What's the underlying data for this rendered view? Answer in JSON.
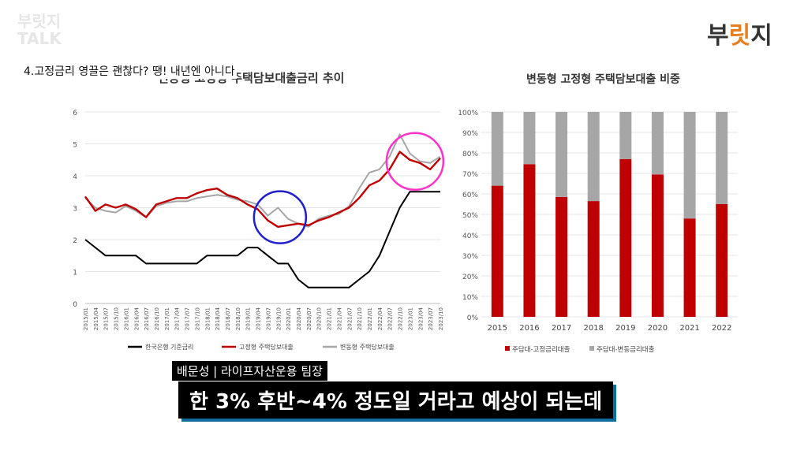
{
  "logo_left": {
    "line1": "부릿지",
    "line2": "TALK"
  },
  "logo_right": {
    "part1": "부",
    "part2": "릿",
    "part3": "지"
  },
  "slide_title": "4.고정금리 영끌은 괜찮다? 땡! 내년엔 아니다",
  "left_chart_title": "변동형 고정형 주택담보대출금리 추이",
  "right_chart_title": "변동형 고정형 주택담보대출 비중",
  "speaker_label": "배문성 | 라이프자산운용 팀장",
  "caption": "한 3% 후반~4% 정도일 거라고 예상이 되는데",
  "colors": {
    "red": "#c00000",
    "gray": "#a6a6a6",
    "black": "#000000",
    "blue_circle": "#1f1fcc",
    "magenta_circle": "#ff33cc"
  },
  "chart_data": [
    {
      "type": "line",
      "ylim": [
        0,
        6
      ],
      "yticks": [
        "0",
        "1",
        "2",
        "3",
        "4",
        "5",
        "6"
      ],
      "x_tick_labels": [
        "2015/01",
        "2015/04",
        "2015/07",
        "2015/10",
        "2016/01",
        "2016/04",
        "2016/07",
        "2016/10",
        "2017/01",
        "2017/04",
        "2017/07",
        "2017/10",
        "2018/01",
        "2018/04",
        "2018/07",
        "2018/10",
        "2019/01",
        "2019/04",
        "2019/07",
        "2019/10",
        "2020/01",
        "2020/04",
        "2020/07",
        "2020/10",
        "2021/01",
        "2021/04",
        "2021/07",
        "2021/10",
        "2022/01",
        "2022/04",
        "2022/07",
        "2022/10",
        "2023/01",
        "2023/04",
        "2023/07",
        "2023/10"
      ],
      "series": [
        {
          "name": "한국은행 기준금리",
          "color": "#000000",
          "values": [
            2.0,
            1.75,
            1.5,
            1.5,
            1.5,
            1.5,
            1.25,
            1.25,
            1.25,
            1.25,
            1.25,
            1.25,
            1.5,
            1.5,
            1.5,
            1.5,
            1.75,
            1.75,
            1.5,
            1.25,
            1.25,
            0.75,
            0.5,
            0.5,
            0.5,
            0.5,
            0.5,
            0.75,
            1.0,
            1.5,
            2.25,
            3.0,
            3.5,
            3.5,
            3.5,
            3.5
          ]
        },
        {
          "name": "고정형 주택담보대출",
          "color": "#c00000",
          "values": [
            3.35,
            2.9,
            3.1,
            3.0,
            3.1,
            2.95,
            2.7,
            3.1,
            3.2,
            3.3,
            3.3,
            3.45,
            3.55,
            3.6,
            3.4,
            3.3,
            3.1,
            2.95,
            2.6,
            2.4,
            2.45,
            2.5,
            2.45,
            2.6,
            2.7,
            2.85,
            3.0,
            3.3,
            3.7,
            3.85,
            4.2,
            4.75,
            4.5,
            4.4,
            4.2,
            4.55
          ]
        },
        {
          "name": "변동형 주택담보대출",
          "color": "#a6a6a6",
          "values": [
            3.3,
            3.0,
            2.9,
            2.85,
            3.05,
            2.9,
            2.7,
            3.05,
            3.15,
            3.2,
            3.2,
            3.3,
            3.35,
            3.4,
            3.35,
            3.25,
            3.2,
            3.1,
            2.75,
            3.0,
            2.65,
            2.5,
            2.4,
            2.65,
            2.75,
            2.8,
            3.05,
            3.6,
            4.1,
            4.2,
            4.6,
            5.3,
            4.7,
            4.45,
            4.4,
            4.6
          ]
        }
      ]
    },
    {
      "type": "bar",
      "stacked": true,
      "ylim": [
        0,
        100
      ],
      "yticks": [
        "0%",
        "10%",
        "20%",
        "30%",
        "40%",
        "50%",
        "60%",
        "70%",
        "80%",
        "90%",
        "100%"
      ],
      "categories": [
        "2015",
        "2016",
        "2017",
        "2018",
        "2019",
        "2020",
        "2021",
        "2022"
      ],
      "series": [
        {
          "name": "주담대-고정금리대출",
          "color": "#c00000",
          "values": [
            64,
            74.5,
            58.5,
            56.5,
            77,
            69.5,
            48,
            55
          ]
        },
        {
          "name": "주담대-변동금리대출",
          "color": "#a6a6a6",
          "values": [
            36,
            25.5,
            41.5,
            43.5,
            23,
            30.5,
            52,
            45
          ]
        }
      ]
    }
  ]
}
